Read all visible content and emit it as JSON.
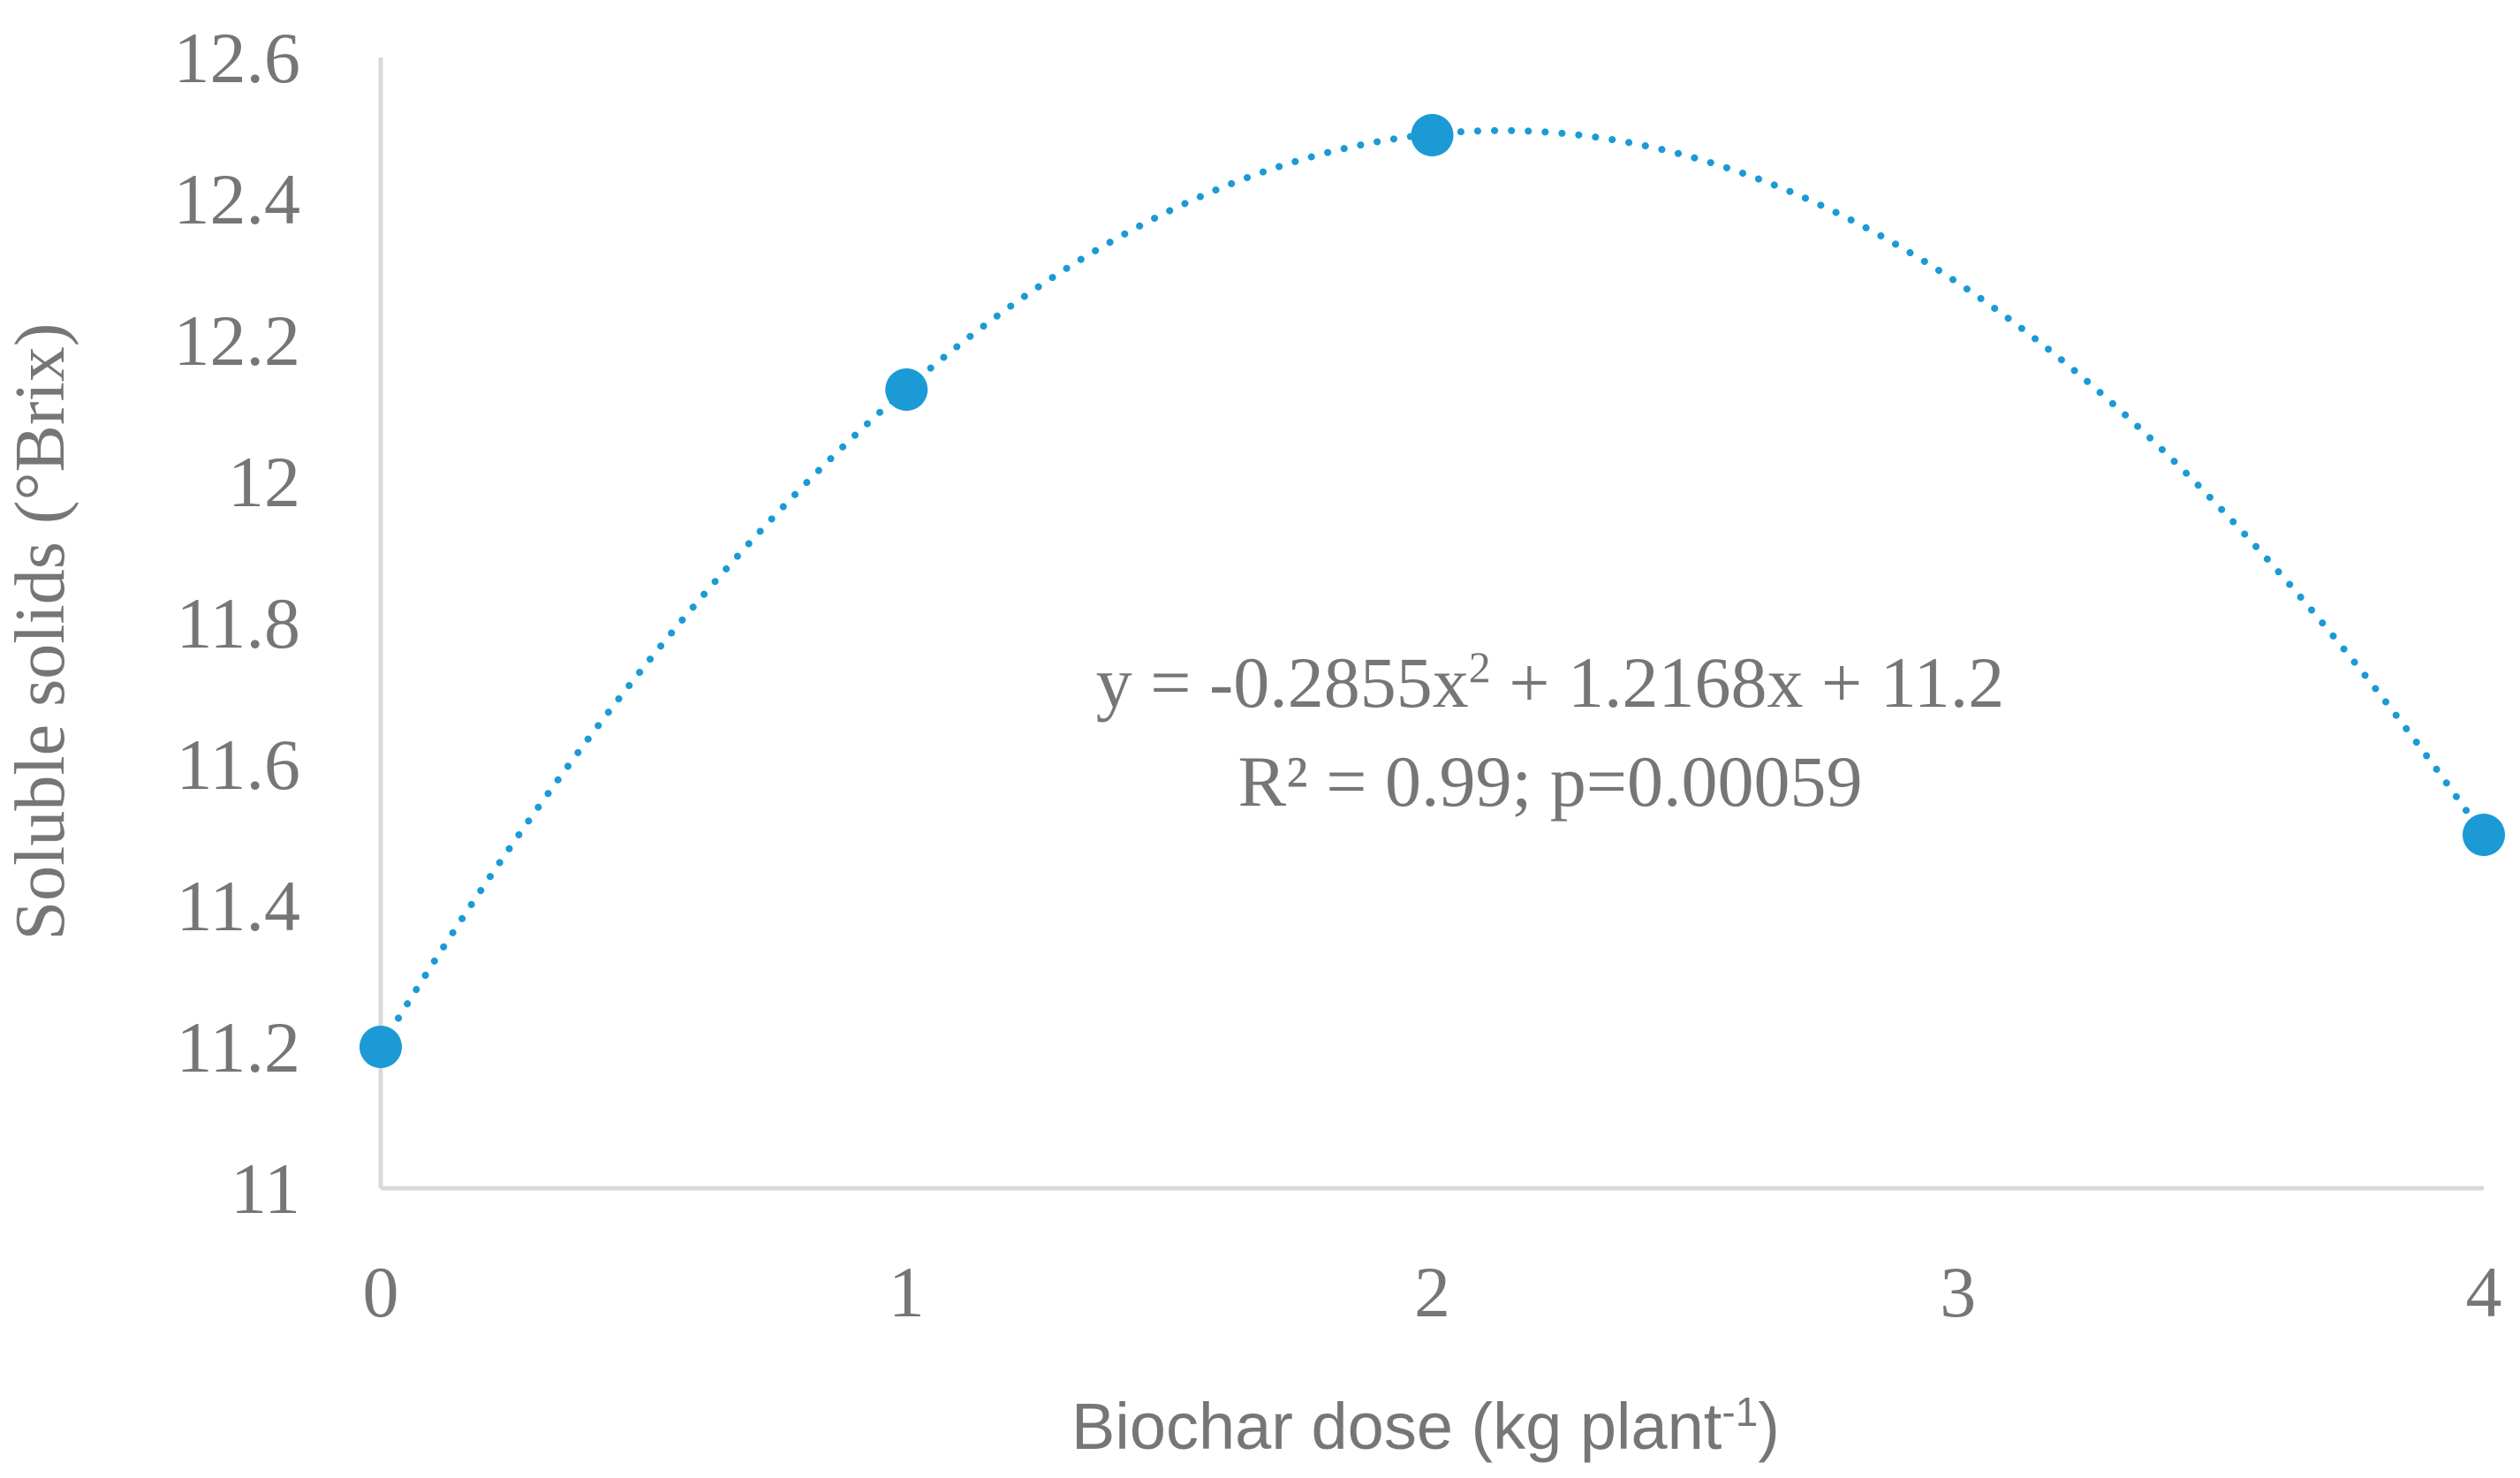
{
  "chart_data": {
    "type": "scatter",
    "title": "",
    "xlabel": "Biochar dose (kg plant",
    "xlabel_superscript": "-1",
    "xlabel_suffix": ")",
    "ylabel": "Soluble solids (°Brix)",
    "xlim": [
      0,
      4
    ],
    "ylim": [
      11,
      12.6
    ],
    "x_ticks": [
      "0",
      "1",
      "2",
      "3",
      "4"
    ],
    "y_ticks": [
      "11",
      "11.2",
      "11.4",
      "11.6",
      "11.8",
      "12",
      "12.2",
      "12.4",
      "12.6"
    ],
    "grid": false,
    "legend": "none",
    "series": [
      {
        "x": [
          0,
          1,
          2,
          4
        ],
        "y": [
          11.2,
          12.13,
          12.49,
          11.5
        ],
        "color": "#1b9ad6"
      }
    ],
    "trendline": {
      "type": "polynomial-2",
      "coefficients": {
        "a": -0.2855,
        "b": 1.2168,
        "c": 11.2
      },
      "style": "dotted",
      "color": "#1b9ad6"
    },
    "annotations": {
      "equation_part1": "y = -0.2855x",
      "equation_sup": "2",
      "equation_part2": " + 1.2168x + 11.2",
      "stats": "R² = 0.99; p=0.00059"
    },
    "colors": {
      "axis": "#d9d9d9",
      "text": "#767676",
      "marker": "#1b9ad6"
    }
  }
}
